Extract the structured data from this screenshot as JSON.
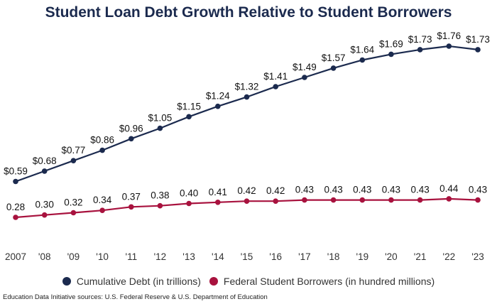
{
  "title": "Student Loan Debt Growth Relative to Student Borrowers",
  "source": "Education Data Initiative sources: U.S. Federal Reserve & U.S. Department of Education",
  "colors": {
    "debt": "#1b2a4e",
    "borrowers": "#a8123e",
    "title": "#1b2a4e"
  },
  "legend": [
    {
      "label": "Cumulative Debt (in trillions)",
      "color": "#1b2a4e"
    },
    {
      "label": "Federal Student Borrowers (in hundred millions)",
      "color": "#a8123e"
    }
  ],
  "chart_data": {
    "type": "line",
    "title": "Student Loan Debt Growth Relative to Student Borrowers",
    "categories": [
      "2007",
      "'08",
      "'09",
      "'10",
      "'11",
      "'12",
      "'13",
      "'14",
      "'15",
      "'16",
      "'17",
      "'18",
      "'19",
      "'20",
      "'21",
      "'22",
      "'23"
    ],
    "series": [
      {
        "name": "Cumulative Debt (in trillions)",
        "values": [
          0.59,
          0.68,
          0.77,
          0.86,
          0.96,
          1.05,
          1.15,
          1.24,
          1.32,
          1.41,
          1.49,
          1.57,
          1.64,
          1.69,
          1.73,
          1.76,
          1.73
        ],
        "labels": [
          "$0.59",
          "$0.68",
          "$0.77",
          "$0.86",
          "$0.96",
          "$1.05",
          "$1.15",
          "$1.24",
          "$1.32",
          "$1.41",
          "$1.49",
          "$1.57",
          "$1.64",
          "$1.69",
          "$1.73",
          "$1.76",
          "$1.73"
        ]
      },
      {
        "name": "Federal Student Borrowers (in hundred millions)",
        "values": [
          0.28,
          0.3,
          0.32,
          0.34,
          0.37,
          0.38,
          0.4,
          0.41,
          0.42,
          0.42,
          0.43,
          0.43,
          0.43,
          0.43,
          0.43,
          0.44,
          0.43
        ],
        "labels": [
          "0.28",
          "0.30",
          "0.32",
          "0.34",
          "0.37",
          "0.38",
          "0.40",
          "0.41",
          "0.42",
          "0.42",
          "0.43",
          "0.43",
          "0.43",
          "0.43",
          "0.43",
          "0.44",
          "0.43"
        ]
      }
    ],
    "ylim": [
      0.28,
      1.76
    ],
    "grid": false,
    "legend_position": "bottom"
  }
}
